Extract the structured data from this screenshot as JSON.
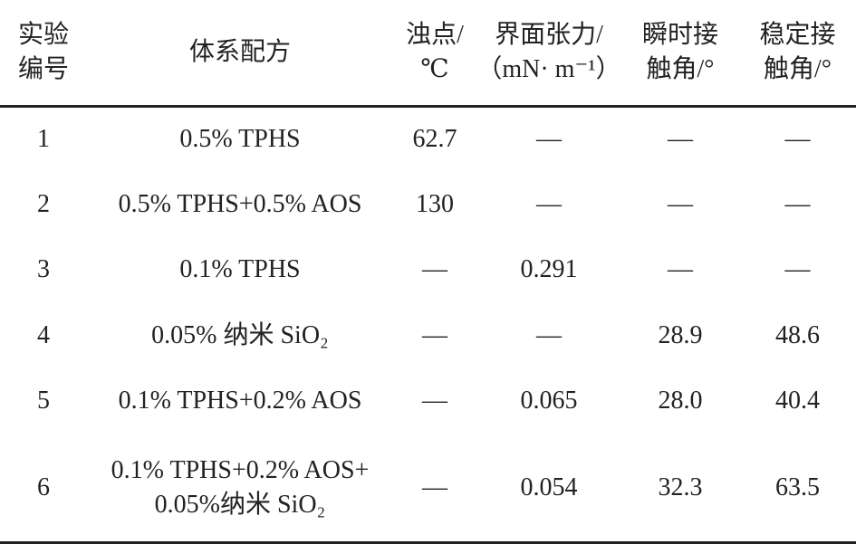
{
  "table": {
    "headers": [
      [
        "实验",
        "编号"
      ],
      [
        "体系配方"
      ],
      [
        "浊点/",
        "℃"
      ],
      [
        "界面张力/",
        "（mN· m⁻¹）"
      ],
      [
        "瞬时接",
        "触角/°"
      ],
      [
        "稳定接",
        "触角/°"
      ]
    ],
    "rows": [
      {
        "cells": [
          "1",
          "0.5% TPHS",
          "62.7",
          "—",
          "—",
          "—"
        ]
      },
      {
        "cells": [
          "2",
          "0.5% TPHS+0.5% AOS",
          "130",
          "—",
          "—",
          "—"
        ]
      },
      {
        "cells": [
          "3",
          "0.1% TPHS",
          "—",
          "0.291",
          "—",
          "—"
        ]
      },
      {
        "cells": [
          "4",
          "0.05% 纳米 SiO₂",
          "—",
          "—",
          "28.9",
          "48.6"
        ]
      },
      {
        "cells": [
          "5",
          "0.1% TPHS+0.2% AOS",
          "—",
          "0.065",
          "28.0",
          "40.4"
        ]
      },
      {
        "cells": [
          "6",
          "0.1% TPHS+0.2% AOS+",
          "—",
          "0.054",
          "32.3",
          "63.5"
        ],
        "formula_line2": "0.05%纳米 SiO₂"
      }
    ]
  }
}
